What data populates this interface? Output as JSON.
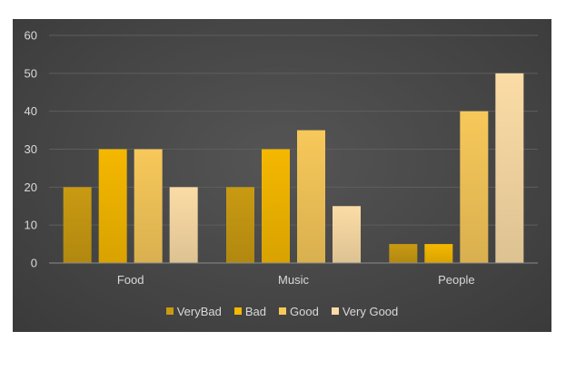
{
  "chart_data": {
    "type": "bar",
    "title": "",
    "xlabel": "",
    "ylabel": "",
    "categories": [
      "Food",
      "Music",
      "People"
    ],
    "ylim": [
      0,
      60
    ],
    "yticks": [
      0,
      10,
      20,
      30,
      40,
      50,
      60
    ],
    "grid": true,
    "legend_position": "bottom",
    "series": [
      {
        "name": "VeryBad",
        "values": [
          20,
          20,
          5
        ],
        "color": "#c99a12"
      },
      {
        "name": "Bad",
        "values": [
          30,
          30,
          5
        ],
        "color": "#f5b800"
      },
      {
        "name": "Good",
        "values": [
          30,
          35,
          40
        ],
        "color": "#f7c85a"
      },
      {
        "name": "Very Good",
        "values": [
          20,
          15,
          50
        ],
        "color": "#fbdca6"
      }
    ]
  }
}
